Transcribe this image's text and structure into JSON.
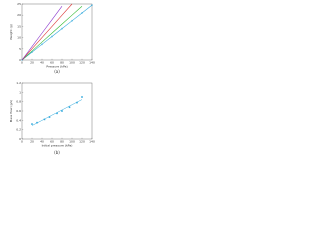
{
  "chart_data": [
    {
      "type": "line",
      "panel_label": "(a)",
      "x_label": "Pressure (kPa)",
      "y_label": "Weight (g)",
      "x": [
        0,
        20,
        40,
        60,
        80,
        100,
        120,
        140
      ],
      "series": [
        {
          "color": "#33aadd",
          "values": [
            0,
            3.5,
            7,
            10.5,
            14,
            17.5,
            21,
            24.5
          ],
          "markers": true
        },
        {
          "color": "#33bb33",
          "values": [
            0,
            4,
            8,
            12,
            16,
            20,
            24,
            null
          ],
          "markers": false
        },
        {
          "color": "#dd3333",
          "values": [
            0,
            5,
            10,
            15,
            20,
            25,
            null,
            null
          ],
          "markers": false
        },
        {
          "color": "#8833cc",
          "values": [
            0,
            6,
            12,
            18,
            24,
            null,
            null,
            null
          ],
          "markers": false
        }
      ],
      "xlim": [
        0,
        140
      ],
      "ylim": [
        0,
        25
      ],
      "xticks": [
        0,
        20,
        40,
        60,
        80,
        100,
        120,
        140
      ],
      "yticks": [
        0,
        5,
        10,
        15,
        20,
        25
      ]
    },
    {
      "type": "scatter",
      "panel_label": "(b)",
      "x_label": "Initial pressure (kPa)",
      "y_label": "Mass flow (g/s)",
      "trendline": true,
      "series": [
        {
          "color": "#33aadd",
          "x": [
            20,
            30,
            45,
            55,
            70,
            80,
            95,
            110,
            120
          ],
          "values": [
            0.32,
            0.35,
            0.42,
            0.47,
            0.55,
            0.6,
            0.68,
            0.78,
            0.9
          ]
        }
      ],
      "xlim": [
        0,
        140
      ],
      "ylim": [
        0,
        1.2
      ],
      "xticks": [
        0,
        20,
        40,
        60,
        80,
        100,
        120,
        140
      ],
      "yticks": [
        0,
        0.2,
        0.4,
        0.6,
        0.8,
        1,
        1.2
      ]
    }
  ]
}
